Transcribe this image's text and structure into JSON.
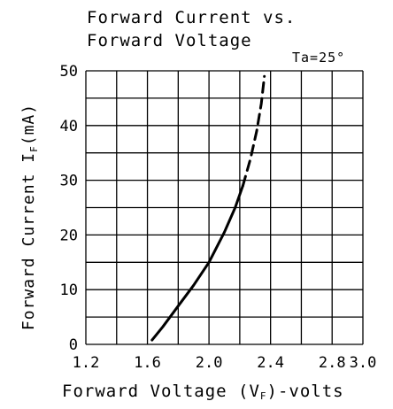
{
  "chart_data": {
    "type": "line",
    "title_lines": [
      "Forward Current vs.",
      "Forward Voltage"
    ],
    "condition": "Ta=25°",
    "xlabel": {
      "main": "Forward Voltage (V",
      "sub": "F",
      "tail": ")-volts"
    },
    "ylabel": {
      "main": "Forward Current I",
      "sub": "F",
      "tail": "(mA)"
    },
    "xlim": [
      1.2,
      3.0
    ],
    "ylim": [
      0,
      50
    ],
    "x_ticks": [
      "1.2",
      "1.6",
      "2.0",
      "2.4",
      "2.8",
      "3.0"
    ],
    "x_tick_values": [
      1.2,
      1.6,
      2.0,
      2.4,
      2.8,
      3.0
    ],
    "y_ticks": [
      "0",
      "10",
      "20",
      "30",
      "40",
      "50"
    ],
    "y_tick_values": [
      0,
      10,
      20,
      30,
      40,
      50
    ],
    "x_grid_step": 0.2,
    "y_grid_step": 5,
    "grid": true,
    "series": [
      {
        "style": "solid",
        "x": [
          1.63,
          1.7,
          1.8,
          1.9,
          2.0,
          2.1,
          2.17,
          2.22
        ],
        "y": [
          0.8,
          3.2,
          7.0,
          10.8,
          15.0,
          20.5,
          25.0,
          29.0
        ]
      },
      {
        "style": "dashed",
        "x": [
          2.22,
          2.27,
          2.31,
          2.34,
          2.36
        ],
        "y": [
          29.0,
          34.0,
          39.0,
          44.0,
          49.0
        ]
      }
    ]
  }
}
